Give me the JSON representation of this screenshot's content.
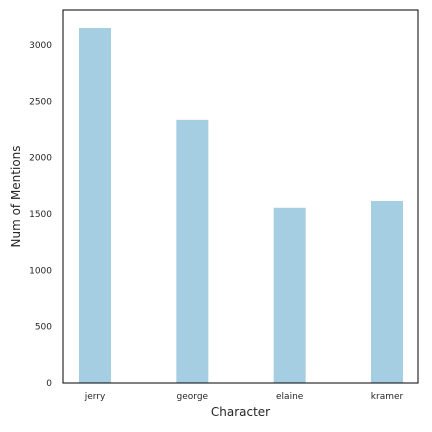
{
  "chart_data": {
    "type": "bar",
    "categories": [
      "jerry",
      "george",
      "elaine",
      "kramer"
    ],
    "values": [
      3150,
      2335,
      1555,
      1615
    ],
    "xlabel": "Character",
    "ylabel": "Num of Mentions",
    "ylim": [
      0,
      3310
    ],
    "yticks": [
      0,
      500,
      1000,
      1500,
      2000,
      2500,
      3000
    ],
    "grid": false,
    "bar_color": "#a6cee3",
    "axis_color": "#000000"
  }
}
